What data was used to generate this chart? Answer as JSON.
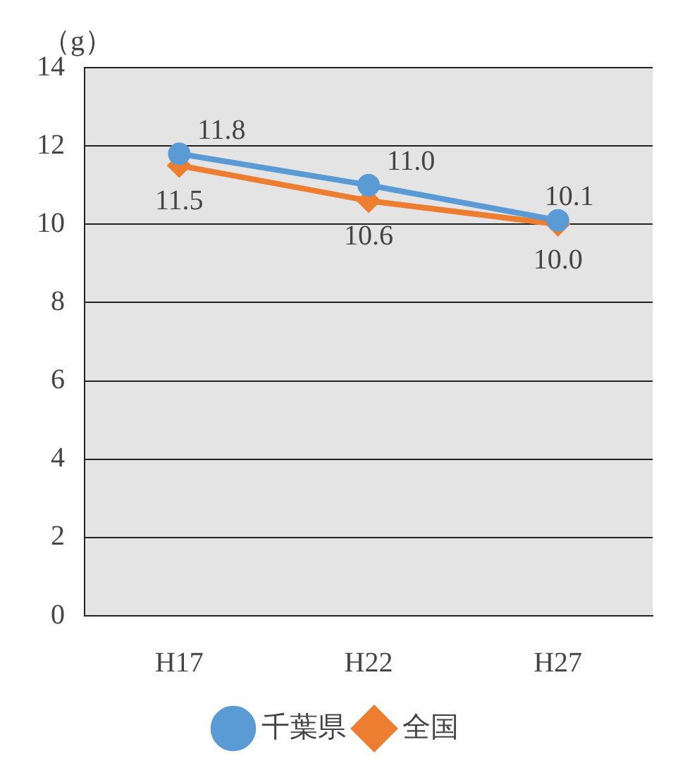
{
  "chart_data": {
    "type": "line",
    "ylabel": "（g）",
    "categories": [
      "H17",
      "H22",
      "H27"
    ],
    "series": [
      {
        "name": "千葉県",
        "color": "#5b9bd5",
        "values": [
          11.8,
          11.0,
          10.1
        ],
        "value_labels": [
          "11.8",
          "11.0",
          "10.1"
        ],
        "marker": "circle"
      },
      {
        "name": "全国",
        "color": "#ed7d31",
        "values": [
          11.5,
          10.6,
          10.0
        ],
        "value_labels": [
          "11.5",
          "10.6",
          "10.0"
        ],
        "marker": "diamond"
      }
    ],
    "ylim": [
      0,
      14
    ],
    "yticks": [
      0,
      2,
      4,
      6,
      8,
      10,
      12,
      14
    ],
    "grid": "y",
    "legend": "bottom"
  }
}
